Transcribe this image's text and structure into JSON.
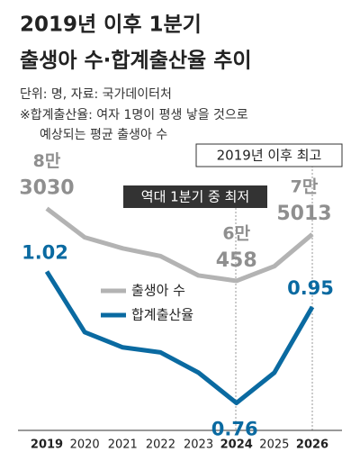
{
  "title": [
    "2019년 이후 1분기",
    "출생아 수·합계출산율 추이"
  ],
  "source": "단위: 명, 자료: 국가데이터처",
  "notes": [
    "※합계출산율: 여자 1명이 평생 낳을 것으로",
    "예상되는 평균 출생아 수"
  ],
  "chart_data": {
    "type": "line",
    "categories": [
      "2019",
      "2020",
      "2021",
      "2022",
      "2023",
      "2024",
      "2025",
      "2026"
    ],
    "ylim": [
      16000,
      106000
    ],
    "y2lim": [
      0.72,
      1.29
    ],
    "annotations": [
      "2019년 이후 최고",
      "역대 1분기 중 최저"
    ],
    "series": [
      {
        "name": "출생아 수",
        "color": "#b3b3b3",
        "label_color": "#8f8f8f",
        "values": [
          83030,
          74050,
          70618,
          68177,
          62136,
          60458,
          65022,
          75013
        ],
        "value_labels": [
          [
            "8만",
            "3030"
          ],
          null,
          null,
          null,
          null,
          [
            "6만",
            "458"
          ],
          null,
          [
            "7만",
            "5013"
          ]
        ]
      },
      {
        "name": "합계출산율",
        "color": "#0a6aa1",
        "label_color": "#0a6aa1",
        "axis": "y2",
        "values": [
          1.02,
          0.9,
          0.87,
          0.86,
          0.82,
          0.76,
          0.82,
          0.95
        ]
      }
    ]
  }
}
